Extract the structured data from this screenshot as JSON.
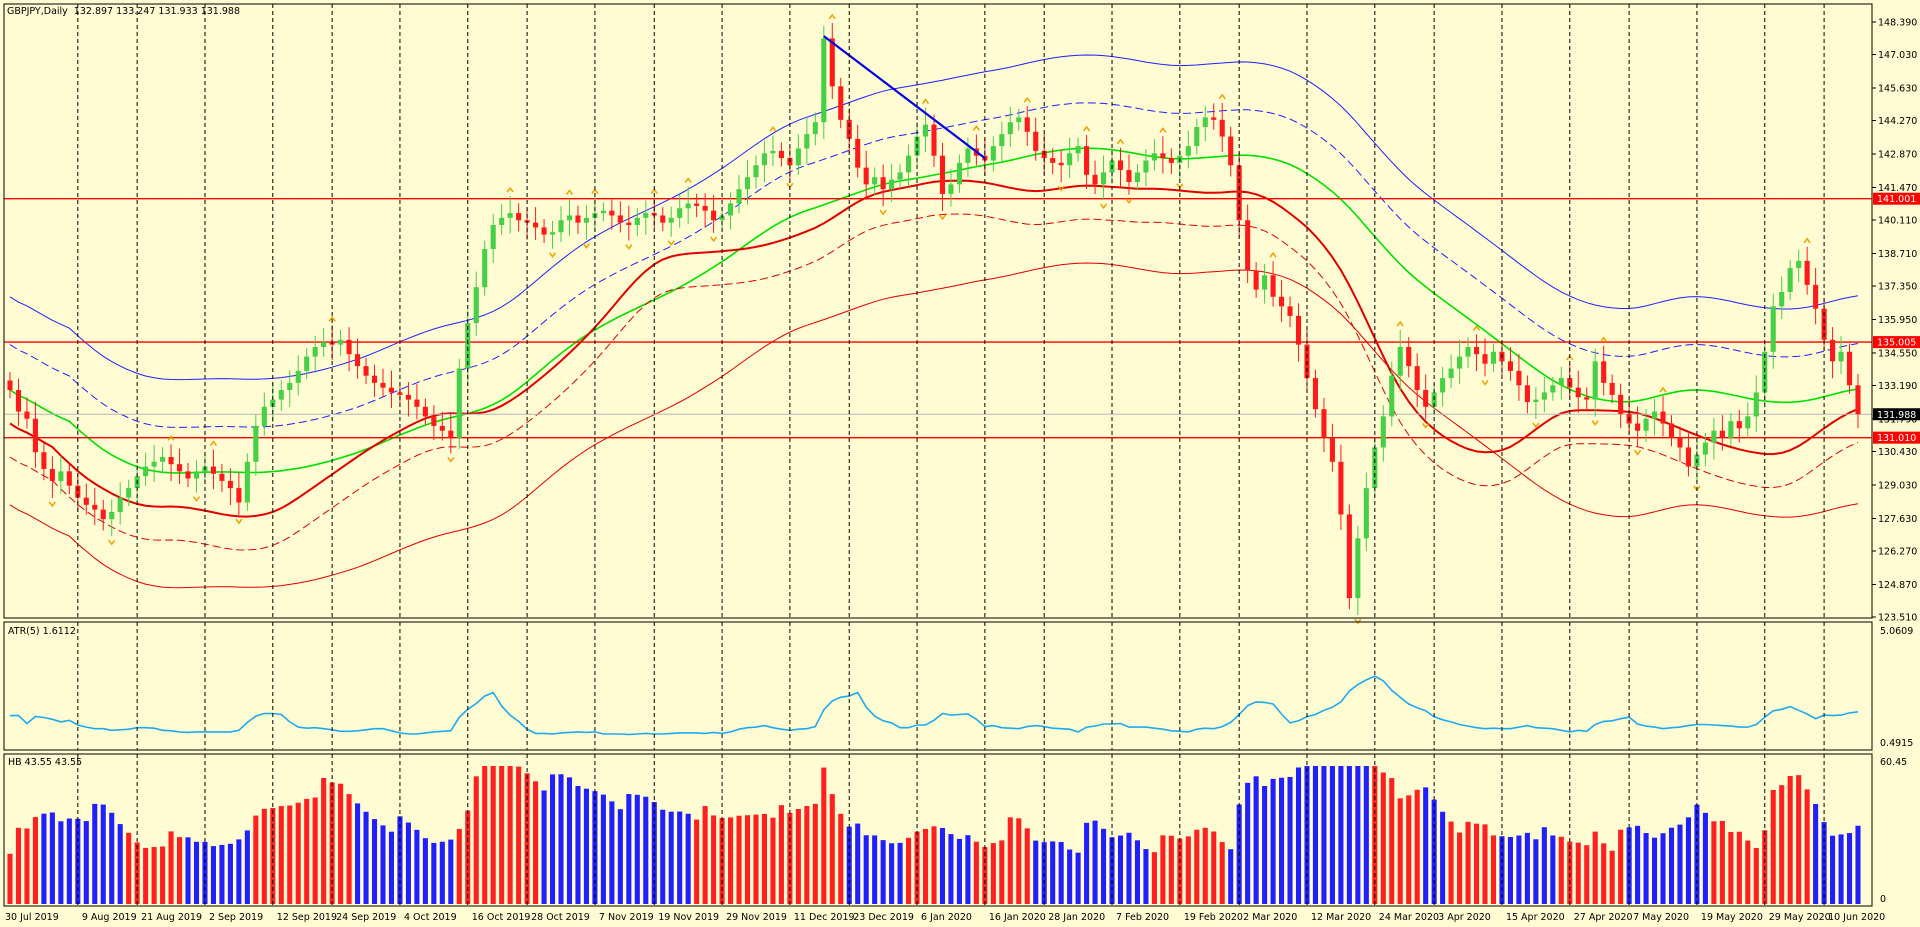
{
  "header": {
    "symbol_label": "GBPJPY,Daily",
    "ohlc": "132.897 133.247 131.933 131.988"
  },
  "price_axis": {
    "ticks": [
      "148.390",
      "147.030",
      "145.630",
      "144.270",
      "142.870",
      "141.470",
      "140.110",
      "138.710",
      "137.350",
      "135.950",
      "134.550",
      "133.190",
      "131.790",
      "130.430",
      "129.030",
      "127.630",
      "126.270",
      "124.870",
      "123.510"
    ],
    "last_price": "131.988",
    "levels": [
      {
        "value": 141.001,
        "label": "141.001"
      },
      {
        "value": 135.005,
        "label": "135.005"
      },
      {
        "value": 131.01,
        "label": "131.010"
      }
    ]
  },
  "atr_panel": {
    "label": "ATR(5) 1.6112",
    "max_label": "5.0609",
    "min_label": "0.4915"
  },
  "hb_panel": {
    "label": "HB 43.55 43.55",
    "max_label": "60.45",
    "min_label": "0"
  },
  "date_axis": {
    "labels": [
      "30 Jul 2019",
      "9 Aug 2019",
      "21 Aug 2019",
      "2 Sep 2019",
      "12 Sep 2019",
      "24 Sep 2019",
      "4 Oct 2019",
      "16 Oct 2019",
      "28 Oct 2019",
      "7 Nov 2019",
      "19 Nov 2019",
      "29 Nov 2019",
      "11 Dec 2019",
      "23 Dec 2019",
      "6 Jan 2020",
      "16 Jan 2020",
      "28 Jan 2020",
      "7 Feb 2020",
      "19 Feb 2020",
      "2 Mar 2020",
      "12 Mar 2020",
      "24 Mar 2020",
      "3 Apr 2020",
      "15 Apr 2020",
      "27 Apr 2020",
      "7 May 2020",
      "19 May 2020",
      "29 May 2020",
      "10 Jun 2020"
    ]
  },
  "colors": {
    "background": "#fffbd2",
    "bull": "#45d045",
    "bear": "#ff1a1a",
    "hb_up": "#ff2020",
    "hb_down": "#2020ff",
    "level_line": "#ff0000",
    "atr_line": "#1eaaf1",
    "trend_line": "#0000e0",
    "outer_band": "#1f1fff",
    "mid_band": "#00e000",
    "red_band": "#e00000",
    "fractal": "#f0a000"
  },
  "chart_data": {
    "type": "candlestick",
    "symbol": "GBPJPY",
    "timeframe": "Daily",
    "x_range": [
      "30 Jul 2019",
      "~22 Jun 2020"
    ],
    "ylim": [
      123.51,
      148.39
    ],
    "closes": [
      133.0,
      132.1,
      131.8,
      130.4,
      129.7,
      129.2,
      129.6,
      129.0,
      128.5,
      128.2,
      128.0,
      127.6,
      127.9,
      128.5,
      128.9,
      129.4,
      129.8,
      130.0,
      130.2,
      129.9,
      129.6,
      129.3,
      129.6,
      129.8,
      129.5,
      129.2,
      128.9,
      128.3,
      130.0,
      131.5,
      132.3,
      132.6,
      133.0,
      133.3,
      133.8,
      134.4,
      134.8,
      135.0,
      134.9,
      135.1,
      134.5,
      134.0,
      133.6,
      133.3,
      133.1,
      132.9,
      132.8,
      132.6,
      132.3,
      131.9,
      131.5,
      131.3,
      131.0,
      133.9,
      135.8,
      137.3,
      138.9,
      139.9,
      140.2,
      140.4,
      140.1,
      140.0,
      139.8,
      139.5,
      139.6,
      140.1,
      140.3,
      140.0,
      140.2,
      140.4,
      140.5,
      140.3,
      140.0,
      139.9,
      140.2,
      140.4,
      140.3,
      140.0,
      140.2,
      140.6,
      140.8,
      140.7,
      140.5,
      140.1,
      140.3,
      140.8,
      141.4,
      141.9,
      142.4,
      142.9,
      143.0,
      142.7,
      142.4,
      143.1,
      143.7,
      144.2,
      147.7,
      145.7,
      144.3,
      143.5,
      142.3,
      141.6,
      141.9,
      141.4,
      141.8,
      142.1,
      142.8,
      143.6,
      144.1,
      142.8,
      141.2,
      141.6,
      142.5,
      143.1,
      142.8,
      142.6,
      143.2,
      143.7,
      144.2,
      144.4,
      143.8,
      143.0,
      142.7,
      142.5,
      142.4,
      142.9,
      143.2,
      142.0,
      141.6,
      142.1,
      142.6,
      142.2,
      141.7,
      142.1,
      142.6,
      142.9,
      142.7,
      142.5,
      142.8,
      143.2,
      144.0,
      144.4,
      144.3,
      143.6,
      142.4,
      140.1,
      138.0,
      137.2,
      137.8,
      136.9,
      136.5,
      136.1,
      134.9,
      133.5,
      132.2,
      131.0,
      130.0,
      127.8,
      124.3,
      126.8,
      128.9,
      130.6,
      131.9,
      133.6,
      134.8,
      134.0,
      133.0,
      132.3,
      132.9,
      133.5,
      133.9,
      134.4,
      134.8,
      134.5,
      134.1,
      134.6,
      134.2,
      133.8,
      133.2,
      132.5,
      132.6,
      132.9,
      133.2,
      133.5,
      133.1,
      132.7,
      132.6,
      134.2,
      133.3,
      132.8,
      132.0,
      131.6,
      131.3,
      131.8,
      132.1,
      131.6,
      131.0,
      130.6,
      129.8,
      130.3,
      130.8,
      131.3,
      131.0,
      131.7,
      131.4,
      131.9,
      132.9,
      134.6,
      136.5,
      137.1,
      138.1,
      138.4,
      137.4,
      136.4,
      135.1,
      134.2,
      134.6,
      133.2,
      131.99
    ],
    "horizontal_levels": [
      141.001,
      135.005,
      131.01
    ],
    "trend_line": {
      "from": {
        "date": "11 Dec 2019",
        "price": 147.8
      },
      "to": {
        "date": "~8 Jan 2020",
        "price": 142.7
      }
    },
    "indicators": [
      "price envelope bands (blue, green, red)",
      "ATR(5)",
      "HB histogram"
    ],
    "atr": {
      "name": "ATR(5)",
      "last": 1.6112,
      "range": [
        0.4915,
        5.0609
      ]
    },
    "hb": {
      "name": "HB",
      "last": 43.55,
      "range": [
        0,
        60.45
      ]
    }
  }
}
